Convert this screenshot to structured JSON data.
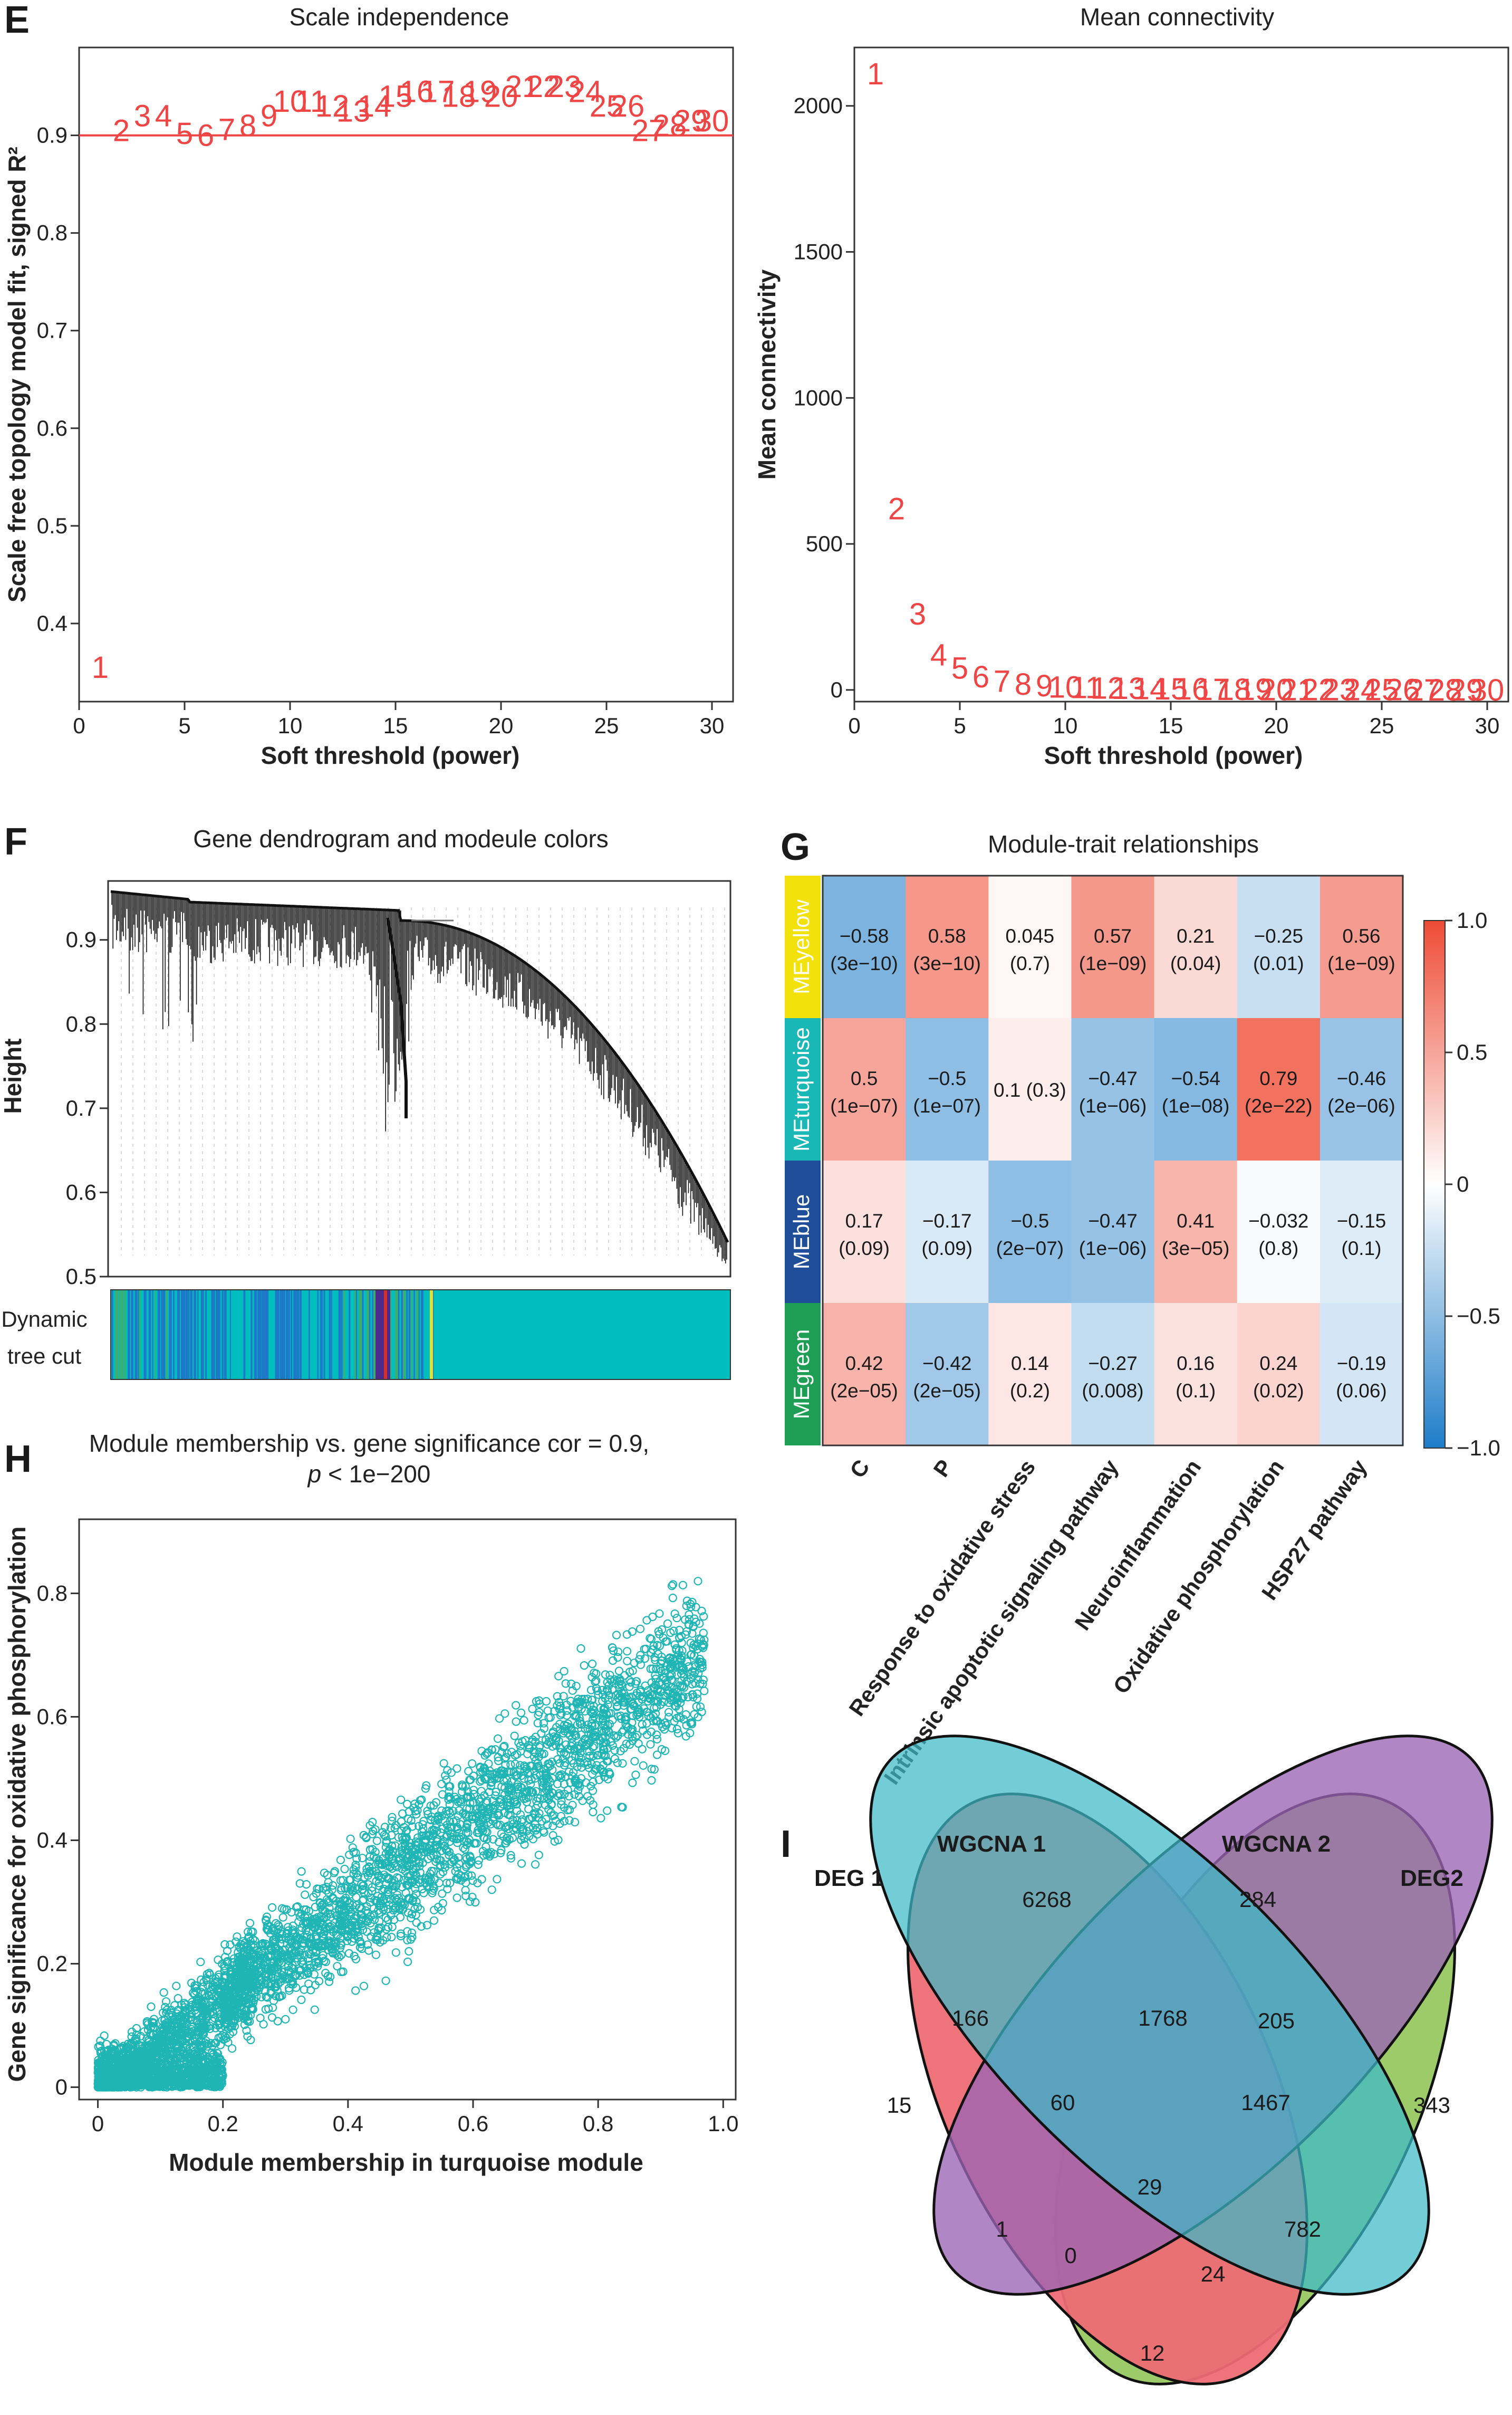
{
  "panels": {
    "E_left": {
      "letter": "E",
      "chart_data": {
        "type": "scatter",
        "title": "Scale independence",
        "xlabel": "Soft threshold (power)",
        "ylabel": "Scale free topology model fit, signed R²",
        "xlim": [
          0,
          31
        ],
        "ylim": [
          0.32,
          0.99
        ],
        "xticks": [
          0,
          5,
          10,
          15,
          20,
          25,
          30
        ],
        "yticks": [
          0.4,
          0.5,
          0.6,
          0.7,
          0.8,
          0.9
        ],
        "ytick_labels": [
          "0.4",
          "0.5",
          "0.6",
          "0.7",
          "0.8",
          "0.9"
        ],
        "hline": 0.9,
        "labels": [
          "1",
          "2",
          "3",
          "4",
          "5",
          "6",
          "7",
          "8",
          "9",
          "10",
          "11",
          "12",
          "13",
          "14",
          "15",
          "16",
          "17",
          "18",
          "19",
          "20",
          "21",
          "22",
          "23",
          "24",
          "25",
          "26",
          "27",
          "28",
          "29",
          "30"
        ],
        "x": [
          1,
          2,
          3,
          4,
          5,
          6,
          7,
          8,
          9,
          10,
          11,
          12,
          13,
          14,
          15,
          16,
          17,
          18,
          19,
          20,
          21,
          22,
          23,
          24,
          25,
          26,
          27,
          28,
          29,
          30
        ],
        "y": [
          0.355,
          0.905,
          0.92,
          0.92,
          0.902,
          0.9,
          0.906,
          0.91,
          0.92,
          0.935,
          0.935,
          0.93,
          0.925,
          0.93,
          0.94,
          0.945,
          0.945,
          0.94,
          0.945,
          0.94,
          0.95,
          0.95,
          0.95,
          0.945,
          0.93,
          0.93,
          0.905,
          0.91,
          0.915,
          0.915
        ]
      }
    },
    "E_right": {
      "chart_data": {
        "type": "scatter",
        "title": "Mean connectivity",
        "xlabel": "Soft threshold (power)",
        "ylabel": "Mean connectivity",
        "xlim": [
          0,
          31
        ],
        "ylim": [
          -40,
          2200
        ],
        "xticks": [
          0,
          5,
          10,
          15,
          20,
          25,
          30
        ],
        "yticks": [
          0,
          500,
          1000,
          1500,
          2000
        ],
        "ytick_labels": [
          "0",
          "500",
          "1000",
          "1500",
          "2000"
        ],
        "labels": [
          "1",
          "2",
          "3",
          "4",
          "5",
          "6",
          "7",
          "8",
          "9",
          "10",
          "11",
          "12",
          "13",
          "14",
          "15",
          "16",
          "17",
          "18",
          "19",
          "20",
          "21",
          "22",
          "23",
          "24",
          "25",
          "26",
          "27",
          "28",
          "29",
          "30"
        ],
        "x": [
          1,
          2,
          3,
          4,
          5,
          6,
          7,
          8,
          9,
          10,
          11,
          12,
          13,
          14,
          15,
          16,
          17,
          18,
          19,
          20,
          21,
          22,
          23,
          24,
          25,
          26,
          27,
          28,
          29,
          30
        ],
        "y": [
          2110,
          620,
          260,
          120,
          75,
          45,
          30,
          20,
          14,
          10,
          8,
          6,
          5,
          4,
          3,
          3,
          2,
          2,
          2,
          1,
          1,
          1,
          1,
          1,
          1,
          1,
          0,
          0,
          0,
          0
        ]
      }
    },
    "F": {
      "letter": "F",
      "title": "Gene dendrogram and modeule colors",
      "ylabel": "Height",
      "yticks": [
        0.5,
        0.6,
        0.7,
        0.8,
        0.9
      ],
      "ytick_labels": [
        "0.5",
        "0.6",
        "0.7",
        "0.8",
        "0.9"
      ],
      "ylim": [
        0.5,
        0.97
      ],
      "color_bar_label_1": "Dynamic",
      "color_bar_label_2": "tree cut",
      "module_colors": {
        "turquoise": "#00BEBE",
        "blue": "#1E78C8",
        "green": "#3DAE6E",
        "yellow": "#E8E030",
        "red": "#D32F2F",
        "purple": "#4B2A8A"
      }
    },
    "G": {
      "letter": "G",
      "chart_data": {
        "type": "heatmap",
        "title": "Module-trait relationships",
        "rows": [
          "MEyellow",
          "MEturquoise",
          "MEblue",
          "MEgreen"
        ],
        "row_colors": [
          "#F2E10B",
          "#19B7B5",
          "#1F4E99",
          "#1E9E55"
        ],
        "columns": [
          "C",
          "P",
          "Response to oxidative stress",
          "Intrinsic apoptotic signaling pathway",
          "Neuroinflammation",
          "Oxidative phosphorylation",
          "HSP27 pathway"
        ],
        "values": [
          [
            -0.58,
            0.58,
            0.045,
            0.57,
            0.21,
            -0.25,
            0.56
          ],
          [
            0.5,
            -0.5,
            0.1,
            -0.47,
            -0.54,
            0.79,
            -0.46
          ],
          [
            0.17,
            -0.17,
            -0.5,
            -0.47,
            0.41,
            -0.032,
            -0.15
          ],
          [
            0.42,
            -0.42,
            0.14,
            -0.27,
            0.16,
            0.24,
            -0.19
          ]
        ],
        "labels_line1": [
          [
            "−0.58",
            "0.58",
            "0.045",
            "0.57",
            "0.21",
            "−0.25",
            "0.56"
          ],
          [
            "0.5",
            "−0.5",
            "0.1 (0.3)",
            "−0.47",
            "−0.54",
            "0.79",
            "−0.46"
          ],
          [
            "0.17",
            "−0.17",
            "−0.5",
            "−0.47",
            "0.41",
            "−0.032",
            "−0.15"
          ],
          [
            "0.42",
            "−0.42",
            "0.14",
            "−0.27",
            "0.16",
            "0.24",
            "−0.19"
          ]
        ],
        "labels_line2": [
          [
            "(3e−10)",
            "(3e−10)",
            "(0.7)",
            "(1e−09)",
            "(0.04)",
            "(0.01)",
            "(1e−09)"
          ],
          [
            "(1e−07)",
            "(1e−07)",
            "",
            "(1e−06)",
            "(1e−08)",
            "(2e−22)",
            "(2e−06)"
          ],
          [
            "(0.09)",
            "(0.09)",
            "(2e−07)",
            "(1e−06)",
            "(3e−05)",
            "(0.8)",
            "(0.1)"
          ],
          [
            "(2e−05)",
            "(2e−05)",
            "(0.2)",
            "(0.008)",
            "(0.1)",
            "(0.02)",
            "(0.06)"
          ]
        ],
        "legend_ticks": [
          "1.0",
          "0.5",
          "0",
          "−0.5",
          "−1.0"
        ],
        "legend_values": [
          1.0,
          0.5,
          0,
          -0.5,
          -1.0
        ],
        "legend_placement": "right",
        "colors": {
          "low": "#1E7DC8",
          "mid": "#FFFFFF",
          "high": "#EE4B35"
        }
      }
    },
    "H": {
      "letter": "H",
      "chart_data": {
        "type": "scatter",
        "title_line1": "Module membership vs. gene significance cor = 0.9,",
        "title_line2_p": "p",
        "title_line2_rest": " < 1e−200",
        "xlabel": "Module membership in turquoise module",
        "ylabel": "Gene significance for oxidative phosphorylation",
        "xlim": [
          -0.03,
          1.02
        ],
        "ylim": [
          -0.02,
          0.92
        ],
        "xticks": [
          0,
          0.2,
          0.4,
          0.6,
          0.8,
          1.0
        ],
        "xtick_labels": [
          "0",
          "0.2",
          "0.4",
          "0.6",
          "0.8",
          "1.0"
        ],
        "yticks": [
          0,
          0.2,
          0.4,
          0.6,
          0.8
        ],
        "ytick_labels": [
          "0",
          "0.2",
          "0.4",
          "0.6",
          "0.8"
        ],
        "point_color": "#1FB5B5",
        "cor": 0.9,
        "trend": {
          "slope": 0.72,
          "intercept": 0.0,
          "note_points": "dense cloud of gene points"
        }
      }
    },
    "I": {
      "letter": "I",
      "chart_data": {
        "type": "venn",
        "sets": [
          "DEG 1",
          "WGCNA 1",
          "WGCNA 2",
          "DEG2"
        ],
        "set_colors": [
          "#EE6B74",
          "#3BBAC8",
          "#9B64B4",
          "#9DCB6A"
        ],
        "regions": [
          {
            "sets": "DEG 1 only",
            "value": "15"
          },
          {
            "sets": "WGCNA 1 only",
            "value": "6268"
          },
          {
            "sets": "WGCNA 2 only",
            "value": "284"
          },
          {
            "sets": "DEG2 only",
            "value": "343"
          },
          {
            "sets": "DEG 1 ∩ WGCNA 1",
            "value": "166"
          },
          {
            "sets": "WGCNA 1 ∩ WGCNA 2",
            "value": "1768"
          },
          {
            "sets": "WGCNA 2 ∩ DEG2",
            "value": "205"
          },
          {
            "sets": "DEG 1 ∩ WGCNA 1 ∩ WGCNA 2",
            "value": "60"
          },
          {
            "sets": "WGCNA 1 ∩ WGCNA 2 ∩ DEG2",
            "value": "1467"
          },
          {
            "sets": "all four",
            "value": "29"
          },
          {
            "sets": "DEG 1 ∩ WGCNA 2",
            "value": "1"
          },
          {
            "sets": "WGCNA 1 ∩ DEG2",
            "value": "782"
          },
          {
            "sets": "DEG 1 ∩ WGCNA 2 ∩ DEG2",
            "value": "0"
          },
          {
            "sets": "DEG 1 ∩ WGCNA 1 ∩ DEG2",
            "value": "24"
          },
          {
            "sets": "DEG 1 ∩ DEG2",
            "value": "12"
          }
        ]
      }
    }
  }
}
